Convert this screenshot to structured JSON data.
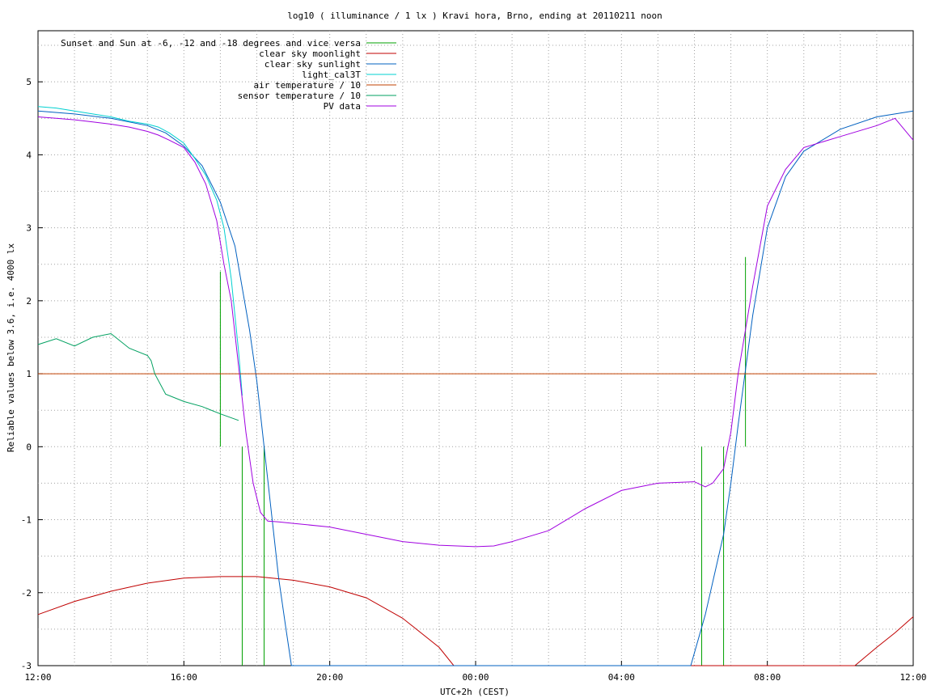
{
  "chart_data": {
    "type": "line",
    "title": "log10 ( illuminance / 1 lx ) Kravi hora, Brno, ending at 20110211 noon",
    "xlabel": "UTC+2h (CEST)",
    "ylabel": "Reliable values below 3.6, i.e. 4000 lx",
    "xlim": [
      0,
      24
    ],
    "ylim": [
      -3,
      5.7
    ],
    "x_unit": "hours after 12:00",
    "x_ticks": [
      0,
      4,
      8,
      12,
      16,
      20,
      24
    ],
    "x_tick_labels": [
      "12:00",
      "16:00",
      "20:00",
      "00:00",
      "04:00",
      "08:00",
      "12:00"
    ],
    "y_ticks": [
      -3,
      -2,
      -1,
      0,
      1,
      2,
      3,
      4,
      5
    ],
    "y_tick_labels": [
      "-3",
      "-2",
      "-1",
      "0",
      "1",
      "2",
      "3",
      "4",
      "5"
    ],
    "grid": true,
    "legend_position": "top-left",
    "series": [
      {
        "name": "Sunset and Sun at -6, -12 and -18 degrees and vice versa",
        "color": "#00a000",
        "style": "vlines",
        "segments": [
          {
            "x": 5.0,
            "y": [
              0,
              2.4
            ]
          },
          {
            "x": 5.6,
            "y": [
              -3,
              0
            ]
          },
          {
            "x": 6.2,
            "y": [
              -3,
              0
            ]
          },
          {
            "x": 18.2,
            "y": [
              -3,
              0
            ]
          },
          {
            "x": 18.8,
            "y": [
              -3,
              0
            ]
          },
          {
            "x": 19.4,
            "y": [
              0,
              2.6
            ]
          }
        ]
      },
      {
        "name": "clear sky moonlight",
        "color": "#c00000",
        "x": [
          0,
          1,
          2,
          3,
          4,
          5,
          6,
          7,
          8,
          9,
          10,
          11,
          11.4,
          22.4,
          23,
          23.5,
          24
        ],
        "y": [
          -2.3,
          -2.12,
          -1.98,
          -1.87,
          -1.8,
          -1.78,
          -1.78,
          -1.83,
          -1.92,
          -2.07,
          -2.35,
          -2.75,
          -3.0,
          -3.0,
          -2.75,
          -2.55,
          -2.33
        ]
      },
      {
        "name": "clear sky sunlight",
        "color": "#0060c0",
        "x": [
          0,
          1,
          2,
          3,
          3.5,
          4,
          4.5,
          5,
          5.4,
          5.8,
          6.0,
          6.2,
          6.4,
          6.6,
          6.8,
          6.95,
          17.9,
          18.3,
          18.8,
          19.0,
          19.2,
          19.6,
          20,
          20.5,
          21,
          22,
          23,
          24
        ],
        "y": [
          4.6,
          4.56,
          4.5,
          4.4,
          4.3,
          4.12,
          3.85,
          3.35,
          2.75,
          1.6,
          0.9,
          0.0,
          -0.9,
          -1.8,
          -2.5,
          -3.0,
          -3.0,
          -2.3,
          -1.2,
          -0.5,
          0.3,
          1.8,
          3.0,
          3.7,
          4.05,
          4.35,
          4.52,
          4.6
        ]
      },
      {
        "name": "light_cal3T",
        "color": "#00d0d0",
        "x": [
          0,
          0.5,
          1,
          1.5,
          2,
          2.5,
          3,
          3.3,
          3.6,
          4,
          4.3,
          4.6,
          4.9,
          5.1,
          5.3,
          5.5,
          5.6
        ],
        "y": [
          4.66,
          4.64,
          4.6,
          4.56,
          4.52,
          4.46,
          4.42,
          4.38,
          4.3,
          4.16,
          3.95,
          3.72,
          3.38,
          3.0,
          2.3,
          1.3,
          0.7
        ]
      },
      {
        "name": "air temperature / 10",
        "color": "#c04000",
        "x": [
          0,
          23
        ],
        "y": [
          1.0,
          1.0
        ]
      },
      {
        "name": "sensor temperature / 10",
        "color": "#00a060",
        "x": [
          0,
          0.5,
          1,
          1.5,
          2,
          2.5,
          3,
          3.1,
          3.2,
          3.5,
          4,
          4.5,
          5,
          5.5
        ],
        "y": [
          1.4,
          1.48,
          1.38,
          1.5,
          1.55,
          1.35,
          1.25,
          1.18,
          1.0,
          0.72,
          0.62,
          0.55,
          0.45,
          0.36
        ]
      },
      {
        "name": "PV data",
        "color": "#a000e0",
        "x": [
          0,
          0.5,
          1,
          1.5,
          2,
          2.5,
          3,
          3.3,
          3.6,
          4,
          4.3,
          4.6,
          4.9,
          5.1,
          5.3,
          5.5,
          5.7,
          5.9,
          6.1,
          6.3,
          6.6,
          7,
          8,
          9,
          10,
          11,
          12,
          12.5,
          13,
          14,
          15,
          16,
          17,
          18,
          18.3,
          18.5,
          18.8,
          19.0,
          19.2,
          19.6,
          20,
          20.5,
          21,
          22,
          23,
          23.5,
          24
        ],
        "y": [
          4.52,
          4.5,
          4.48,
          4.45,
          4.42,
          4.38,
          4.32,
          4.27,
          4.2,
          4.1,
          3.9,
          3.6,
          3.1,
          2.5,
          2.0,
          1.1,
          0.2,
          -0.5,
          -0.9,
          -1.02,
          -1.03,
          -1.05,
          -1.1,
          -1.2,
          -1.3,
          -1.35,
          -1.37,
          -1.36,
          -1.3,
          -1.15,
          -0.85,
          -0.6,
          -0.5,
          -0.48,
          -0.55,
          -0.5,
          -0.3,
          0.2,
          1.0,
          2.2,
          3.3,
          3.8,
          4.1,
          4.25,
          4.4,
          4.5,
          4.2
        ]
      }
    ]
  }
}
